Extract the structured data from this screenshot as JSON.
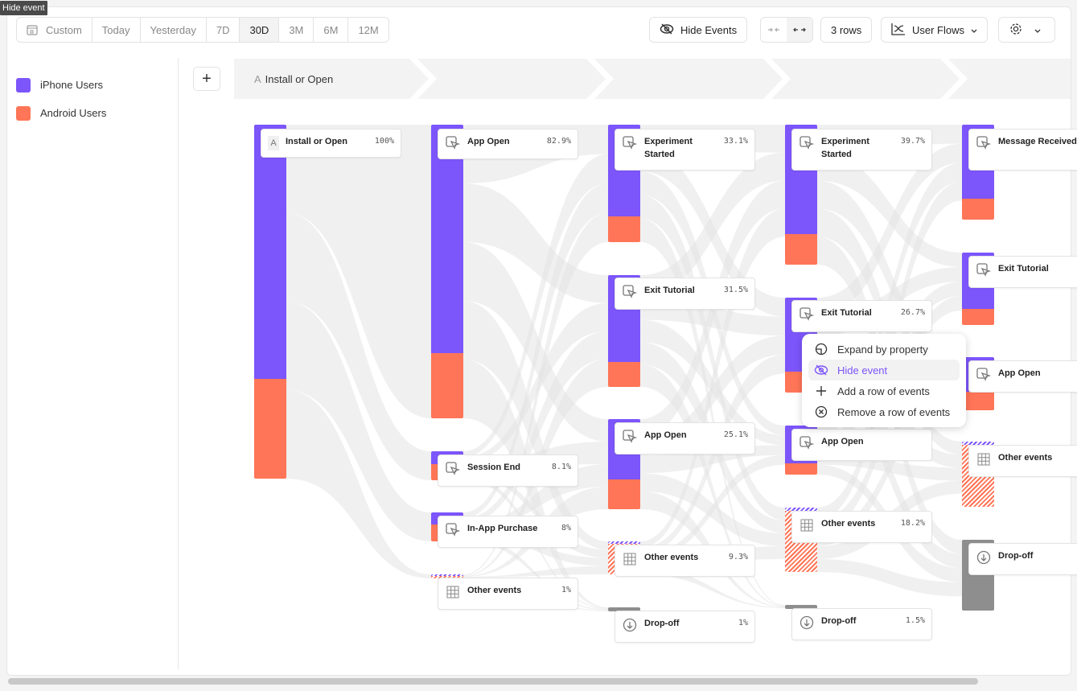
{
  "tooltip": "Hide event",
  "date_range": {
    "items": [
      "Custom",
      "Today",
      "Yesterday",
      "7D",
      "30D",
      "3M",
      "6M",
      "12M"
    ],
    "selected": "30D"
  },
  "toolbar": {
    "hide_events": "Hide Events",
    "rows": "3 rows",
    "view": "User Flows",
    "compact_icon": "collapse-arrows-icon",
    "expand_icon": "expand-arrows-icon"
  },
  "legend": [
    {
      "label": "iPhone Users",
      "color": "#7c55fb"
    },
    {
      "label": "Android Users",
      "color": "#ff7557"
    }
  ],
  "step": {
    "letter": "A",
    "label": "Install or Open",
    "add": "+"
  },
  "columns": [
    [
      {
        "name": "Install or Open",
        "pct": "100%",
        "icon": "A"
      }
    ],
    [
      {
        "name": "App Open",
        "pct": "82.9%",
        "icon": "cursor"
      },
      {
        "name": "Session End",
        "pct": "8.1%",
        "icon": "cursor"
      },
      {
        "name": "In-App Purchase",
        "pct": "8%",
        "icon": "cursor"
      },
      {
        "name": "Other events",
        "pct": "1%",
        "icon": "grid"
      }
    ],
    [
      {
        "name": "Experiment Started",
        "pct": "33.1%",
        "icon": "cursor"
      },
      {
        "name": "Exit Tutorial",
        "pct": "31.5%",
        "icon": "cursor"
      },
      {
        "name": "App Open",
        "pct": "25.1%",
        "icon": "cursor"
      },
      {
        "name": "Other events",
        "pct": "9.3%",
        "icon": "grid"
      },
      {
        "name": "Drop-off",
        "pct": "1%",
        "icon": "dropoff"
      }
    ],
    [
      {
        "name": "Experiment Started",
        "pct": "39.7%",
        "icon": "cursor"
      },
      {
        "name": "Exit Tutorial",
        "pct": "26.7%",
        "icon": "cursor"
      },
      {
        "name": "App Open",
        "pct": "",
        "icon": "cursor"
      },
      {
        "name": "Other events",
        "pct": "18.2%",
        "icon": "grid"
      },
      {
        "name": "Drop-off",
        "pct": "1.5%",
        "icon": "dropoff"
      }
    ],
    [
      {
        "name": "Message Received",
        "pct": "",
        "icon": "cursor"
      },
      {
        "name": "Exit Tutorial",
        "pct": "",
        "icon": "cursor"
      },
      {
        "name": "App Open",
        "pct": "",
        "icon": "cursor"
      },
      {
        "name": "Other events",
        "pct": "",
        "icon": "grid"
      },
      {
        "name": "Drop-off",
        "pct": "",
        "icon": "dropoff"
      }
    ]
  ],
  "context_menu": [
    {
      "label": "Expand by property",
      "icon": "expand-property-icon"
    },
    {
      "label": "Hide event",
      "icon": "eye-slash-icon",
      "selected": true
    },
    {
      "label": "Add a row of events",
      "icon": "plus-icon"
    },
    {
      "label": "Remove a row of events",
      "icon": "x-circle-icon"
    }
  ]
}
